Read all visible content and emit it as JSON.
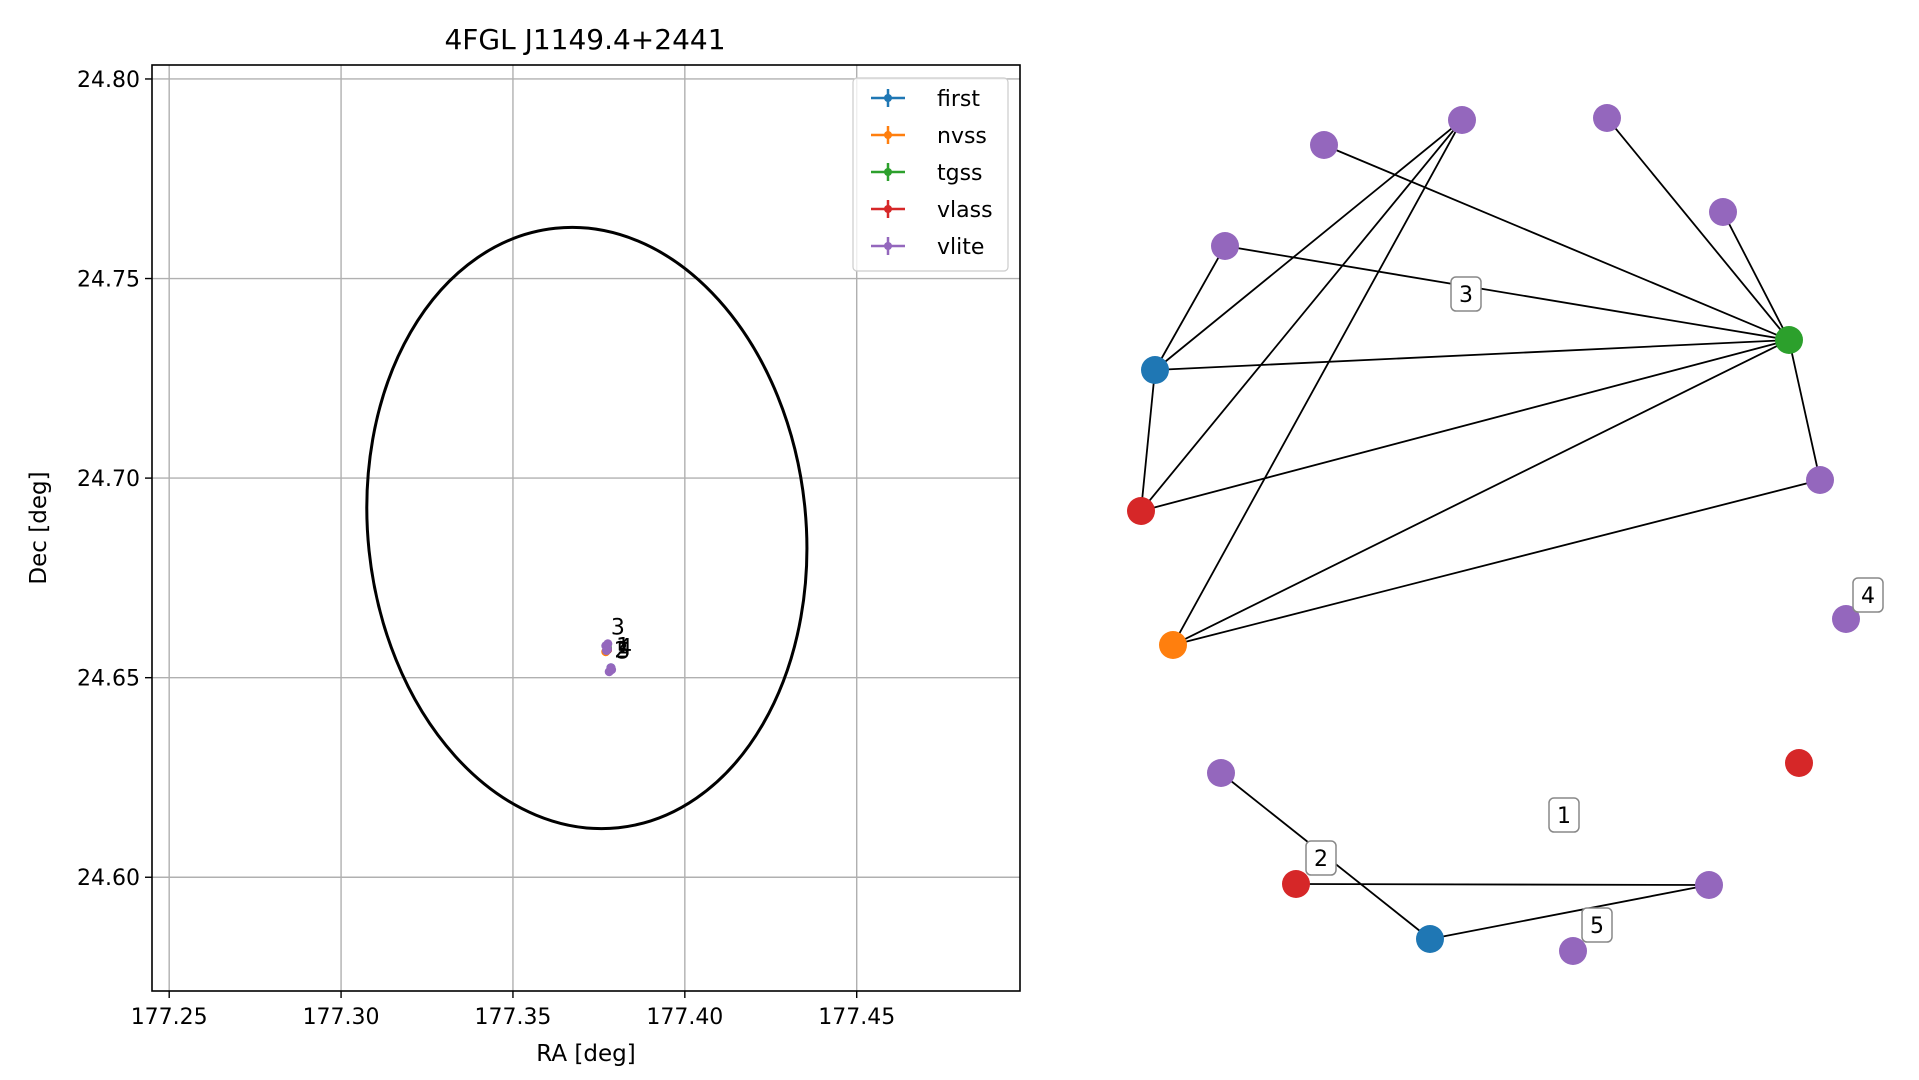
{
  "chart_data": [
    {
      "type": "scatter",
      "title": "4FGL J1149.4+2441",
      "xlabel": "RA [deg]",
      "ylabel": "Dec [deg]",
      "xlim": [
        177.245,
        177.4975
      ],
      "ylim": [
        24.5715,
        24.8035
      ],
      "xticks": [
        "177.25",
        "177.30",
        "177.35",
        "177.40",
        "177.45"
      ],
      "yticks": [
        "24.60",
        "24.65",
        "24.70",
        "24.75",
        "24.80"
      ],
      "grid": true,
      "legend_position": "top-right",
      "ellipse": {
        "center": [
          177.3715,
          24.6875
        ],
        "semi_axis_ra": 0.0637,
        "semi_axis_dec": 0.0755,
        "color": "#000000"
      },
      "series": [
        {
          "name": "first",
          "color": "#1f77b4",
          "points": [
            [
              177.3775,
              24.657
            ],
            [
              177.3785,
              24.6525
            ]
          ]
        },
        {
          "name": "nvss",
          "color": "#ff7f0e",
          "points": [
            [
              177.377,
              24.6565
            ]
          ]
        },
        {
          "name": "tgss",
          "color": "#2ca02c",
          "points": [
            [
              177.3775,
              24.6575
            ]
          ]
        },
        {
          "name": "vlass",
          "color": "#d62728",
          "points": [
            [
              177.3775,
              24.657
            ],
            [
              177.3785,
              24.6522
            ]
          ]
        },
        {
          "name": "vlite",
          "color": "#9467bd",
          "points": [
            [
              177.377,
              24.658
            ],
            [
              177.3775,
              24.6572
            ],
            [
              177.3787,
              24.652
            ],
            [
              177.378,
              24.6515
            ],
            [
              177.3772,
              24.6568
            ],
            [
              177.3785,
              24.6525
            ],
            [
              177.3776,
              24.6585
            ]
          ]
        }
      ],
      "annotations": [
        {
          "text": "3",
          "at": [
            177.3785,
            24.6608
          ]
        },
        {
          "text": "1",
          "at": [
            177.38,
            24.656
          ]
        },
        {
          "text": "4",
          "at": [
            177.3806,
            24.6558
          ]
        },
        {
          "text": "2",
          "at": [
            177.3795,
            24.655
          ]
        },
        {
          "text": "5",
          "at": [
            177.3801,
            24.6548
          ]
        }
      ]
    },
    {
      "type": "network",
      "nodes": [
        {
          "id": "n0",
          "survey": "vlite",
          "color": "#9467bd"
        },
        {
          "id": "n1",
          "survey": "vlite",
          "color": "#9467bd"
        },
        {
          "id": "n2",
          "survey": "vlite",
          "color": "#9467bd"
        },
        {
          "id": "n3",
          "survey": "vlite",
          "color": "#9467bd"
        },
        {
          "id": "n4",
          "survey": "vlite",
          "color": "#9467bd"
        },
        {
          "id": "n5",
          "survey": "first",
          "color": "#1f77b4"
        },
        {
          "id": "n6",
          "survey": "tgss",
          "color": "#2ca02c"
        },
        {
          "id": "n7",
          "survey": "vlass",
          "color": "#d62728"
        },
        {
          "id": "n8",
          "survey": "vlite",
          "color": "#9467bd"
        },
        {
          "id": "n9",
          "survey": "nvss",
          "color": "#ff7f0e"
        },
        {
          "id": "n10",
          "survey": "vlite",
          "color": "#9467bd"
        },
        {
          "id": "n11",
          "survey": "vlite",
          "color": "#9467bd"
        },
        {
          "id": "n12",
          "survey": "vlass",
          "color": "#d62728"
        },
        {
          "id": "n13",
          "survey": "vlite",
          "color": "#9467bd"
        },
        {
          "id": "n14",
          "survey": "first",
          "color": "#1f77b4"
        },
        {
          "id": "n15",
          "survey": "vlass",
          "color": "#d62728"
        },
        {
          "id": "n16",
          "survey": "vlite",
          "color": "#9467bd"
        }
      ],
      "edges": [
        [
          "n0",
          "n6"
        ],
        [
          "n1",
          "n5"
        ],
        [
          "n1",
          "n7"
        ],
        [
          "n1",
          "n9"
        ],
        [
          "n2",
          "n6"
        ],
        [
          "n3",
          "n6"
        ],
        [
          "n4",
          "n5"
        ],
        [
          "n4",
          "n6"
        ],
        [
          "n5",
          "n6"
        ],
        [
          "n5",
          "n7"
        ],
        [
          "n6",
          "n7"
        ],
        [
          "n6",
          "n9"
        ],
        [
          "n6",
          "n8"
        ],
        [
          "n8",
          "n9"
        ],
        [
          "n11",
          "n14"
        ],
        [
          "n14",
          "n13"
        ],
        [
          "n13",
          "n15"
        ]
      ],
      "group_labels": [
        "1",
        "2",
        "3",
        "4",
        "5"
      ]
    }
  ]
}
